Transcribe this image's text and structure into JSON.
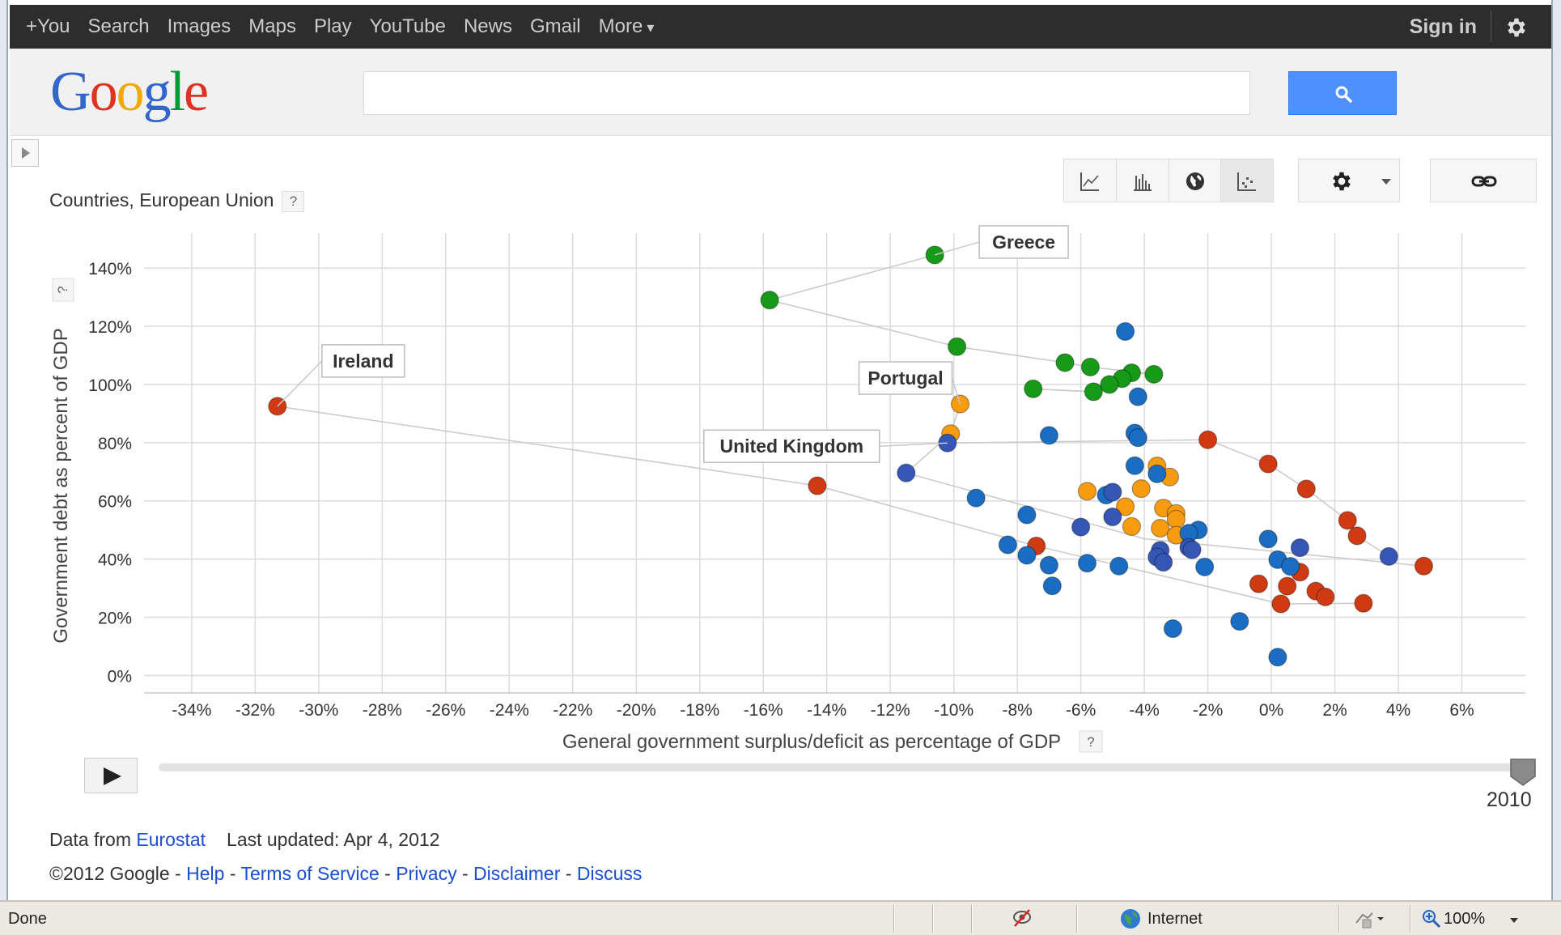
{
  "topbar": {
    "nav": [
      "+You",
      "Search",
      "Images",
      "Maps",
      "Play",
      "YouTube",
      "News",
      "Gmail",
      "More"
    ],
    "signin": "Sign in",
    "settings_icon": "gear-icon"
  },
  "logo": {
    "letters": [
      "G",
      "o",
      "o",
      "g",
      "l",
      "e"
    ]
  },
  "search": {
    "placeholder": "",
    "button_icon": "search-icon"
  },
  "toolbar": {
    "chart_types": [
      "line-chart-icon",
      "bar-chart-icon",
      "map-chart-icon",
      "scatter-chart-icon"
    ],
    "selected": "scatter-chart-icon",
    "settings_icon": "gear-icon",
    "link_icon": "link-icon"
  },
  "entity_label": "Countries, European Union",
  "help_label": "?",
  "chart_data": {
    "type": "scatter",
    "xlabel": "General government surplus/deficit as percentage of GDP",
    "ylabel": "Government debt as percent of GDP",
    "xlim": [
      -35.5,
      8
    ],
    "ylim": [
      -6,
      152
    ],
    "xticks": [
      -34,
      -32,
      -30,
      -28,
      -26,
      -24,
      -22,
      -20,
      -18,
      -16,
      -14,
      -12,
      -10,
      -8,
      -6,
      -4,
      -2,
      0,
      2,
      4,
      6
    ],
    "yticks": [
      0,
      20,
      40,
      60,
      80,
      100,
      120,
      140
    ],
    "tick_suffix": "%",
    "grid": true,
    "colors": {
      "red": "#d03a12",
      "green": "#179a18",
      "blue": "#1a6dc2",
      "navy": "#3656b6",
      "orange": "#f79b0f"
    },
    "trails": [
      {
        "color": "#c9c9c9",
        "points": [
          [
            -10.6,
            144.5
          ],
          [
            -15.8,
            129
          ],
          [
            -9.9,
            113
          ],
          [
            -6.5,
            107.5
          ],
          [
            -5.7,
            106
          ],
          [
            -3.7,
            103.5
          ],
          [
            -4.4,
            104
          ],
          [
            -4.7,
            102
          ],
          [
            -5.1,
            100
          ],
          [
            -5.6,
            97.5
          ],
          [
            -7.5,
            98.5
          ],
          [
            -5.7,
            97.5
          ]
        ]
      },
      {
        "color": "#c9c9c9",
        "points": [
          [
            -31.3,
            92.5
          ],
          [
            -14.3,
            65.2
          ],
          [
            -7.4,
            44.5
          ],
          [
            0.3,
            24.6
          ],
          [
            2.9,
            24.8
          ]
        ]
      },
      {
        "color": "#c9c9c9",
        "points": [
          [
            -9.8,
            93.3
          ],
          [
            -10.1,
            83.1
          ],
          [
            -11.5,
            69.6
          ],
          [
            -4.0,
            47.0
          ],
          [
            4.8,
            37.6
          ]
        ]
      },
      {
        "color": "#c9c9c9",
        "points": [
          [
            -10.2,
            79.9
          ],
          [
            -2.0,
            81.0
          ],
          [
            -0.1,
            72.7
          ],
          [
            1.1,
            64.1
          ],
          [
            2.4,
            53.3
          ],
          [
            2.7,
            48.0
          ],
          [
            3.7,
            40.9
          ]
        ]
      }
    ],
    "series": [
      {
        "color": "green",
        "points": [
          [
            -10.6,
            144.5
          ],
          [
            -15.8,
            129
          ],
          [
            -9.9,
            113
          ],
          [
            -6.5,
            107.5
          ],
          [
            -5.7,
            106
          ],
          [
            -4.4,
            104
          ],
          [
            -3.7,
            103.5
          ],
          [
            -4.7,
            102
          ],
          [
            -5.1,
            100
          ],
          [
            -7.5,
            98.5
          ],
          [
            -5.6,
            97.5
          ]
        ]
      },
      {
        "color": "red",
        "points": [
          [
            -31.3,
            92.5
          ],
          [
            -14.3,
            65.2
          ],
          [
            -7.4,
            44.5
          ],
          [
            -2.0,
            81.0
          ],
          [
            -0.1,
            72.7
          ],
          [
            1.1,
            64.1
          ],
          [
            2.4,
            53.3
          ],
          [
            2.7,
            48.0
          ],
          [
            4.8,
            37.6
          ],
          [
            0.9,
            35.5
          ],
          [
            -0.4,
            31.5
          ],
          [
            0.5,
            30.7
          ],
          [
            1.4,
            29.0
          ],
          [
            1.7,
            27.0
          ],
          [
            0.3,
            24.6
          ],
          [
            2.9,
            24.8
          ]
        ]
      },
      {
        "color": "orange",
        "points": [
          [
            -9.8,
            93.3
          ],
          [
            -10.1,
            83.1
          ],
          [
            -3.6,
            72.0
          ],
          [
            -3.2,
            68.2
          ],
          [
            -5.8,
            63.3
          ],
          [
            -4.1,
            64.2
          ],
          [
            -4.6,
            58.0
          ],
          [
            -3.4,
            57.5
          ],
          [
            -3.0,
            55.7
          ],
          [
            -3.0,
            53.7
          ],
          [
            -4.4,
            51.2
          ],
          [
            -3.5,
            50.6
          ],
          [
            -3.0,
            48.2
          ]
        ]
      },
      {
        "color": "blue",
        "points": [
          [
            -4.6,
            118.2
          ],
          [
            -4.2,
            95.8
          ],
          [
            -7.0,
            82.5
          ],
          [
            -4.3,
            83.3
          ],
          [
            -4.2,
            81.7
          ],
          [
            -4.3,
            72.1
          ],
          [
            -3.6,
            69.3
          ],
          [
            -9.3,
            61.0
          ],
          [
            -5.2,
            62.0
          ],
          [
            -7.7,
            55.2
          ],
          [
            -2.3,
            50.0
          ],
          [
            -2.6,
            48.9
          ],
          [
            -0.1,
            46.9
          ],
          [
            -8.3,
            44.9
          ],
          [
            -7.7,
            41.3
          ],
          [
            -7.0,
            37.9
          ],
          [
            -5.8,
            38.6
          ],
          [
            -4.8,
            37.6
          ],
          [
            -2.1,
            37.3
          ],
          [
            -6.9,
            30.8
          ],
          [
            -1.0,
            18.6
          ],
          [
            -3.1,
            16.1
          ],
          [
            0.2,
            6.3
          ],
          [
            0.2,
            39.8
          ],
          [
            0.6,
            37.5
          ]
        ]
      },
      {
        "color": "navy",
        "points": [
          [
            -10.2,
            79.9
          ],
          [
            -11.5,
            69.6
          ],
          [
            -5.0,
            63.0
          ],
          [
            -5.0,
            54.5
          ],
          [
            -6.0,
            51.0
          ],
          [
            -3.5,
            43.0
          ],
          [
            -3.6,
            40.7
          ],
          [
            -3.4,
            38.9
          ],
          [
            -2.6,
            44.0
          ],
          [
            -2.5,
            43.2
          ],
          [
            0.9,
            43.9
          ],
          [
            3.7,
            40.9
          ]
        ]
      }
    ],
    "annotations": [
      {
        "text": "Greece",
        "x": -10.6,
        "y": 144.5
      },
      {
        "text": "Ireland",
        "x": -31.3,
        "y": 92.5
      },
      {
        "text": "Portugal",
        "x": -9.8,
        "y": 93.3
      },
      {
        "text": "United Kingdom",
        "x": -10.2,
        "y": 79.9
      }
    ]
  },
  "playback": {
    "year": "2010",
    "play_icon": "play-icon"
  },
  "footer": {
    "data_from": "Data from",
    "source": "Eurostat",
    "updated": "Last updated: Apr 4, 2012",
    "copyright": "©2012 Google",
    "sep": " - ",
    "links": [
      "Help",
      "Terms of Service",
      "Privacy",
      "Disclaimer",
      "Discuss"
    ]
  },
  "statusbar": {
    "status": "Done",
    "zone": "Internet",
    "zoom": "100%"
  }
}
